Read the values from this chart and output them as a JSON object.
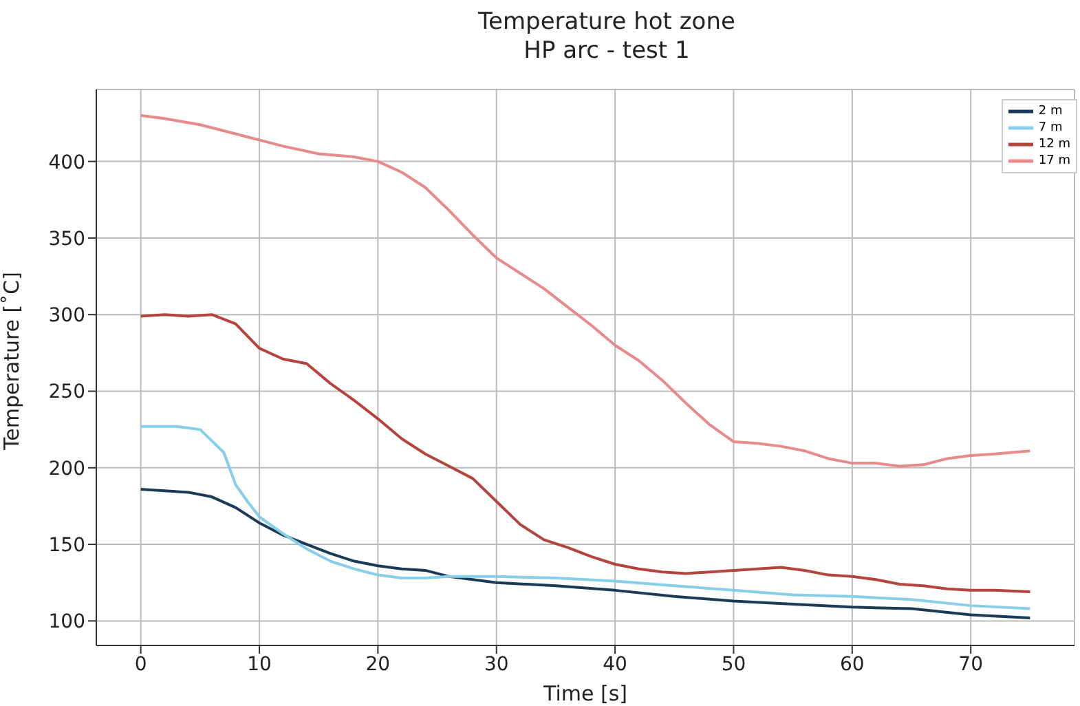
{
  "chart_data": {
    "type": "line",
    "title": "Temperature hot zone\nHP arc - test 1",
    "xlabel": "Time [s]",
    "ylabel": "Temperature [˚C]",
    "xlim": [
      -3.75,
      78.75
    ],
    "ylim": [
      84,
      447
    ],
    "xticks": [
      0,
      10,
      20,
      30,
      40,
      50,
      60,
      70
    ],
    "yticks": [
      100,
      150,
      200,
      250,
      300,
      350,
      400
    ],
    "grid": true,
    "legend": "top right",
    "series": [
      {
        "name": "2 m",
        "color": "#1b3a57",
        "x": [
          0,
          2,
          4,
          6,
          8,
          10,
          12,
          14,
          16,
          18,
          20,
          22,
          24,
          26,
          28,
          30,
          35,
          40,
          45,
          50,
          55,
          60,
          65,
          70,
          75
        ],
        "values": [
          186,
          185,
          184,
          181,
          174,
          164,
          156,
          150,
          144,
          139,
          136,
          134,
          133,
          129,
          127,
          125,
          123,
          120,
          116,
          113,
          111,
          109,
          108,
          104,
          102
        ]
      },
      {
        "name": "7 m",
        "color": "#87ceeb",
        "x": [
          0,
          3,
          5,
          7,
          8,
          9,
          10,
          12,
          14,
          16,
          18,
          20,
          22,
          24,
          26,
          28,
          30,
          35,
          40,
          45,
          50,
          55,
          60,
          65,
          70,
          75
        ],
        "values": [
          227,
          227,
          225,
          210,
          189,
          178,
          168,
          157,
          147,
          139,
          134,
          130,
          128,
          128,
          129,
          129,
          129,
          128,
          126,
          123,
          120,
          117,
          116,
          114,
          110,
          108
        ]
      },
      {
        "name": "12 m",
        "color": "#b5453c",
        "x": [
          0,
          2,
          4,
          6,
          8,
          10,
          12,
          14,
          16,
          18,
          20,
          22,
          24,
          26,
          28,
          30,
          32,
          34,
          36,
          38,
          40,
          42,
          44,
          46,
          48,
          50,
          52,
          54,
          56,
          58,
          60,
          62,
          64,
          66,
          68,
          70,
          72,
          75
        ],
        "values": [
          299,
          300,
          299,
          300,
          294,
          278,
          271,
          268,
          255,
          244,
          232,
          219,
          209,
          201,
          193,
          178,
          163,
          153,
          148,
          142,
          137,
          134,
          132,
          131,
          132,
          133,
          134,
          135,
          133,
          130,
          129,
          127,
          124,
          123,
          121,
          120,
          120,
          119
        ]
      },
      {
        "name": "17 m",
        "color": "#e8898a",
        "x": [
          0,
          2,
          5,
          8,
          12,
          15,
          18,
          20,
          22,
          24,
          26,
          28,
          30,
          32,
          34,
          36,
          38,
          40,
          42,
          44,
          46,
          48,
          50,
          52,
          54,
          56,
          58,
          60,
          62,
          64,
          66,
          68,
          70,
          72,
          75
        ],
        "values": [
          430,
          428,
          424,
          418,
          410,
          405,
          403,
          400,
          393,
          383,
          368,
          352,
          337,
          327,
          317,
          305,
          293,
          280,
          270,
          257,
          242,
          228,
          217,
          216,
          214,
          211,
          206,
          203,
          203,
          201,
          202,
          206,
          208,
          209,
          211
        ]
      }
    ]
  }
}
